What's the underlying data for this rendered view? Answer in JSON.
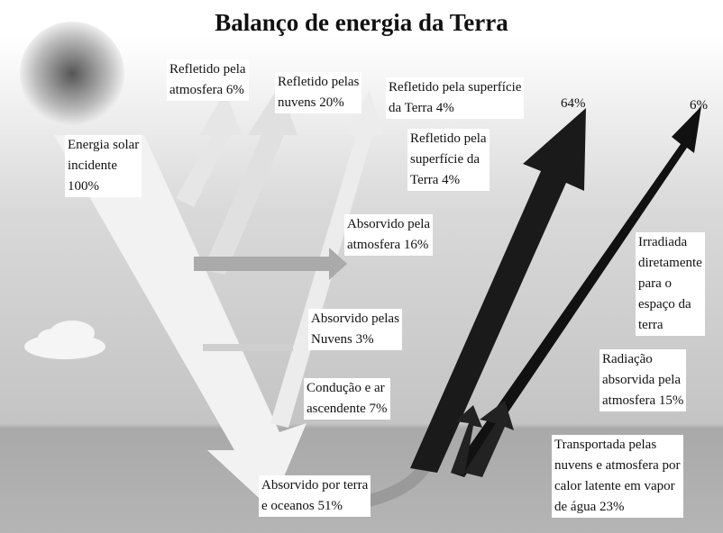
{
  "title": "Balanço de energia da Terra",
  "labels": [
    {
      "lines": [
        "Refletido pela",
        "atmosfera 6%"
      ]
    },
    {
      "lines": [
        "Refletido pelas",
        "nuvens 20%"
      ]
    },
    {
      "lines": [
        "Refletido pela superfície",
        "da Terra 4%"
      ]
    },
    {
      "lines": [
        "64%"
      ]
    },
    {
      "lines": [
        "6%"
      ]
    },
    {
      "lines": [
        "Energia solar",
        "incidente",
        "100%"
      ]
    },
    {
      "lines": [
        "Refletido pela",
        "superfície da",
        "Terra 4%"
      ]
    },
    {
      "lines": [
        "Absorvido pela",
        "atmosfera 16%"
      ]
    },
    {
      "lines": [
        "Irradiada",
        "diretamente",
        "para o",
        "espaço da",
        "terra"
      ]
    },
    {
      "lines": [
        "Absorvido pelas",
        "Nuvens 3%"
      ]
    },
    {
      "lines": [
        "Radiação",
        "absorvida pela",
        "atmosfera 15%"
      ]
    },
    {
      "lines": [
        "Condução e ar",
        "ascendente 7%"
      ]
    },
    {
      "lines": [
        "Transportada pelas",
        "nuvens e atmosfera por",
        "calor latente em vapor",
        "de água 23%"
      ]
    },
    {
      "lines": [
        "Absorvido por terra",
        "e oceanos 51%"
      ]
    }
  ]
}
